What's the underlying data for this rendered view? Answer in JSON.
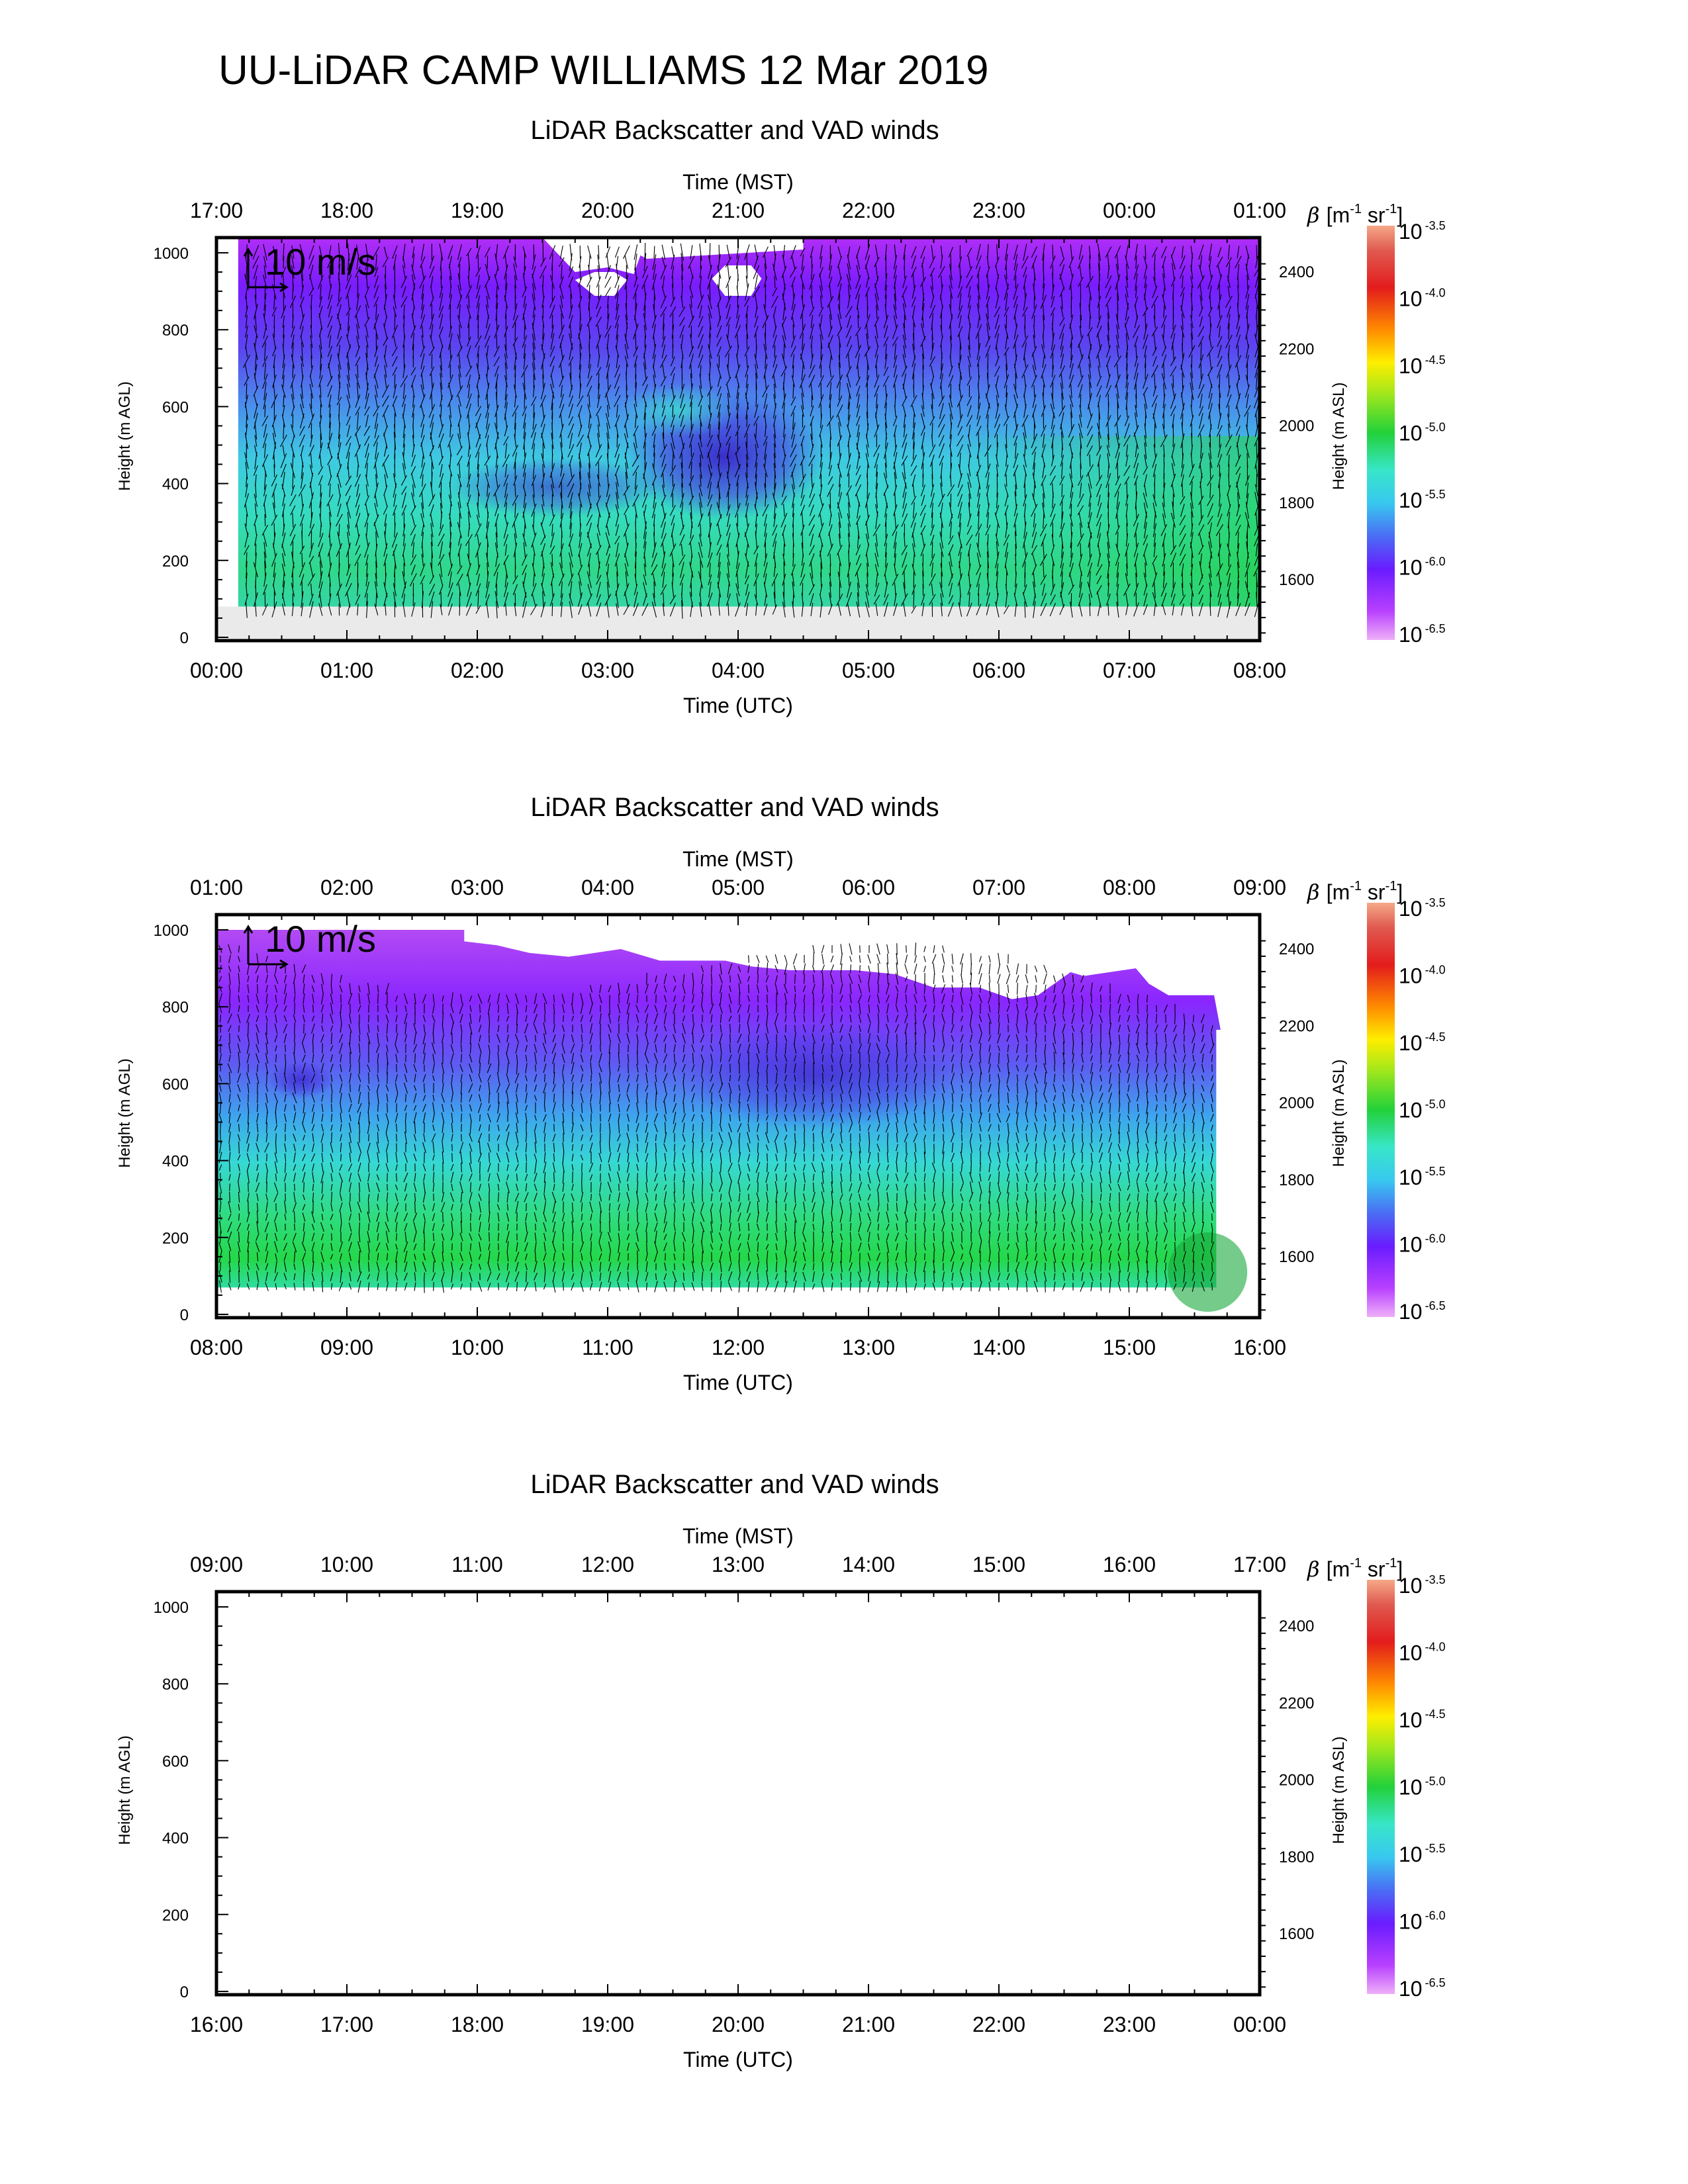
{
  "page_title": "UU-LiDAR CAMP WILLIAMS 12 Mar 2019",
  "colors": {
    "violet_low": "#eeb0f8",
    "purple": "#a000ff",
    "blue": "#4a6cf4",
    "cyan": "#38e6e6",
    "green": "#22d13a",
    "yellow": "#ffee00",
    "orange": "#ff8a00",
    "red": "#e31c1c",
    "top": "#f08a6c"
  },
  "chart_data": [
    {
      "type": "heatmap",
      "title": "LiDAR Backscatter and VAD winds",
      "top_axis_label": "Time (MST)",
      "top_ticks": [
        "17:00",
        "18:00",
        "19:00",
        "20:00",
        "21:00",
        "22:00",
        "23:00",
        "00:00",
        "01:00"
      ],
      "xlabel": "Time (UTC)",
      "x_ticks": [
        "00:00",
        "01:00",
        "02:00",
        "03:00",
        "04:00",
        "05:00",
        "06:00",
        "07:00",
        "08:00"
      ],
      "xlim": [
        "00:00",
        "08:00"
      ],
      "ylabel": "Height (m AGL)",
      "y_ticks": [
        "0",
        "200",
        "400",
        "600",
        "800",
        "1000"
      ],
      "ylim": [
        0,
        1000
      ],
      "y2label": "Height (m ASL)",
      "y2_ticks": [
        "1600",
        "1800",
        "2000",
        "2200",
        "2400"
      ],
      "y2lim": [
        1440,
        2440
      ],
      "vector_key": "10 m/s",
      "colorbar_label": "β [m-1 sr-1]",
      "colorbar_ticks": [
        "-3.5",
        "-4.0",
        "-4.5",
        "-5.0",
        "-5.5",
        "-6.0",
        "-6.5"
      ],
      "colorbar_base": "10",
      "colorbar_range": [
        -6.5,
        -3.5
      ],
      "data_time_range": [
        "00:10",
        "08:00"
      ],
      "has_data": true
    },
    {
      "type": "heatmap",
      "title": "LiDAR Backscatter and VAD winds",
      "top_axis_label": "Time (MST)",
      "top_ticks": [
        "01:00",
        "02:00",
        "03:00",
        "04:00",
        "05:00",
        "06:00",
        "07:00",
        "08:00",
        "09:00"
      ],
      "xlabel": "Time (UTC)",
      "x_ticks": [
        "08:00",
        "09:00",
        "10:00",
        "11:00",
        "12:00",
        "13:00",
        "14:00",
        "15:00",
        "16:00"
      ],
      "xlim": [
        "08:00",
        "16:00"
      ],
      "ylabel": "Height (m AGL)",
      "y_ticks": [
        "0",
        "200",
        "400",
        "600",
        "800",
        "1000"
      ],
      "ylim": [
        0,
        1000
      ],
      "y2label": "Height (m ASL)",
      "y2_ticks": [
        "1600",
        "1800",
        "2000",
        "2200",
        "2400"
      ],
      "y2lim": [
        1440,
        2440
      ],
      "vector_key": "10 m/s",
      "colorbar_label": "β [m-1 sr-1]",
      "colorbar_ticks": [
        "-3.5",
        "-4.0",
        "-4.5",
        "-5.0",
        "-5.5",
        "-6.0",
        "-6.5"
      ],
      "colorbar_base": "10",
      "colorbar_range": [
        -6.5,
        -3.5
      ],
      "data_time_range": [
        "08:00",
        "15:40"
      ],
      "has_data": true
    },
    {
      "type": "heatmap",
      "title": "LiDAR Backscatter and VAD winds",
      "top_axis_label": "Time (MST)",
      "top_ticks": [
        "09:00",
        "10:00",
        "11:00",
        "12:00",
        "13:00",
        "14:00",
        "15:00",
        "16:00",
        "17:00"
      ],
      "xlabel": "Time (UTC)",
      "x_ticks": [
        "16:00",
        "17:00",
        "18:00",
        "19:00",
        "20:00",
        "21:00",
        "22:00",
        "23:00",
        "00:00"
      ],
      "xlim": [
        "16:00",
        "00:00"
      ],
      "ylabel": "Height (m AGL)",
      "y_ticks": [
        "0",
        "200",
        "400",
        "600",
        "800",
        "1000"
      ],
      "ylim": [
        0,
        1000
      ],
      "y2label": "Height (m ASL)",
      "y2_ticks": [
        "1600",
        "1800",
        "2000",
        "2200",
        "2400"
      ],
      "y2lim": [
        1440,
        2440
      ],
      "vector_key": "",
      "colorbar_label": "β [m-1 sr-1]",
      "colorbar_ticks": [
        "-3.5",
        "-4.0",
        "-4.5",
        "-5.0",
        "-5.5",
        "-6.0",
        "-6.5"
      ],
      "colorbar_base": "10",
      "colorbar_range": [
        -6.5,
        -3.5
      ],
      "has_data": false
    }
  ]
}
